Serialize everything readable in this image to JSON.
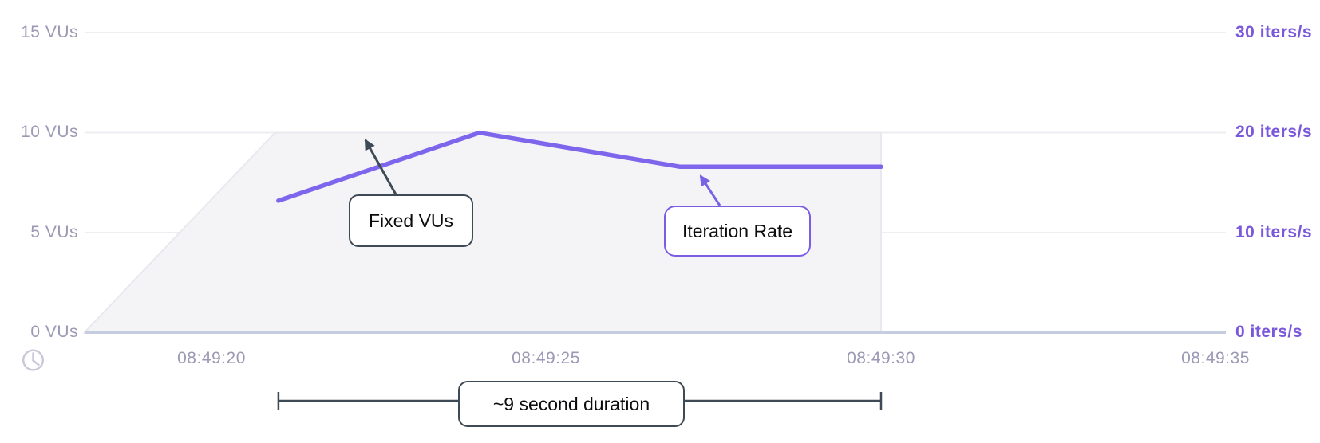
{
  "axes": {
    "left_ticks": [
      "15 VUs",
      "10 VUs",
      "5 VUs",
      "0 VUs"
    ],
    "right_ticks": [
      "30 iters/s",
      "20 iters/s",
      "10 iters/s",
      "0 iters/s"
    ],
    "x_ticks": [
      "08:49:20",
      "08:49:25",
      "08:49:30",
      "08:49:35"
    ]
  },
  "annotations": {
    "fixed_vus": {
      "label": "Fixed VUs"
    },
    "iteration_rate": {
      "label": "Iteration Rate"
    },
    "duration": {
      "label": "~9 second duration"
    }
  },
  "icons": {
    "bottom_left": "clock-icon"
  },
  "colors": {
    "iteration_line": "#7d66ec",
    "right_axis_text": "#7a58dc",
    "left_axis_text": "#9b99b4",
    "area_fill": "#f4f4f7",
    "area_edge": "#e8e8ef",
    "gridline": "#ededf2",
    "baseline": "#c6cde1",
    "annotation_dark": "#3e4a55",
    "annotation_purple": "#7d5ce4",
    "clock_icon": "#c9c7d8"
  },
  "chart_data": {
    "type": "line",
    "title": "",
    "xlabel": "time",
    "x_ticks": [
      "08:49:20",
      "08:49:25",
      "08:49:30",
      "08:49:35"
    ],
    "y_left": {
      "unit": "VUs",
      "ticks": [
        15,
        10,
        5,
        0
      ],
      "range": [
        0,
        15
      ]
    },
    "y_right": {
      "unit": "iters/s",
      "ticks": [
        30,
        20,
        10,
        0
      ],
      "range": [
        0,
        30
      ]
    },
    "grid": true,
    "legend": "none",
    "series": [
      {
        "name": "Fixed VUs",
        "type": "area",
        "axis": "left",
        "unit": "VUs",
        "points": [
          {
            "t": "08:49:18",
            "sec": -1.9,
            "v": 0
          },
          {
            "t": "08:49:21",
            "sec": 0.95,
            "v": 10
          },
          {
            "t": "08:49:30",
            "sec": 10,
            "v": 10
          },
          {
            "t": "08:49:30",
            "sec": 10,
            "v": 0
          }
        ]
      },
      {
        "name": "Iteration Rate",
        "type": "line",
        "axis": "right",
        "unit": "iters/s",
        "points": [
          {
            "t": "08:49:21",
            "sec": 1,
            "v": 13.2
          },
          {
            "t": "08:49:24",
            "sec": 4,
            "v": 20
          },
          {
            "t": "08:49:27",
            "sec": 7,
            "v": 16.6
          },
          {
            "t": "08:49:30",
            "sec": 10,
            "v": 16.6
          }
        ]
      }
    ],
    "duration_annotation": {
      "label": "~9 second duration",
      "from": "08:49:21",
      "from_sec": 1,
      "to": "08:49:30",
      "to_sec": 10
    }
  }
}
